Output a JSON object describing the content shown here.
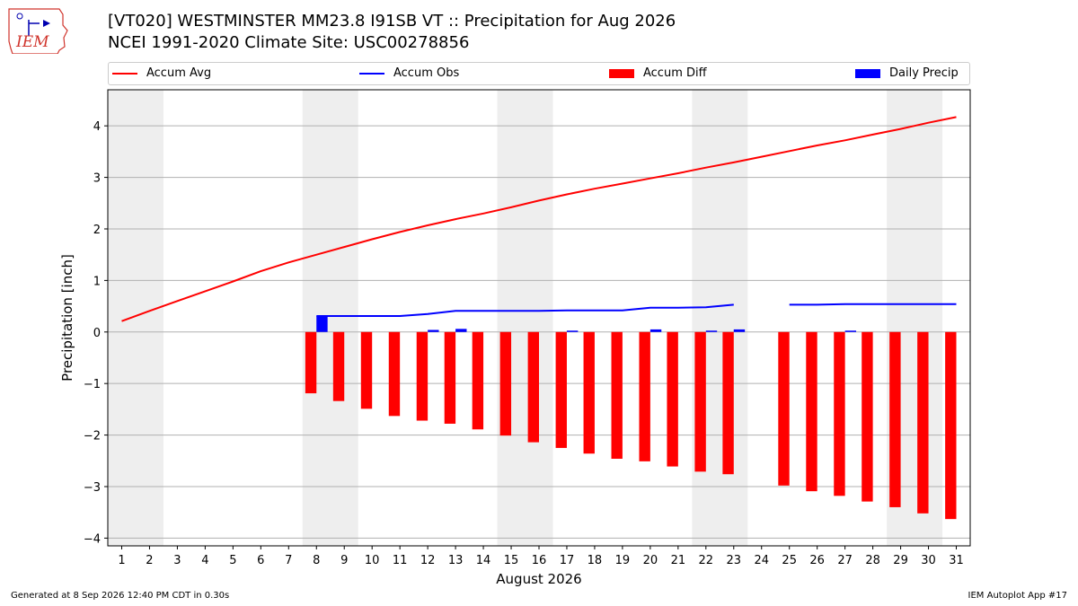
{
  "logo": {
    "text": "IEM",
    "icon": "iem-logo-icon"
  },
  "title_line1": "[VT020] WESTMINSTER MM23.8 I91SB  VT :: Precipitation for Aug 2026",
  "title_line2": "NCEI 1991-2020 Climate Site: USC00278856",
  "footer_left": "Generated at 8 Sep 2026 12:40 PM CDT in 0.30s",
  "footer_right": "IEM Autoplot App #17",
  "colors": {
    "avg": "#ff0000",
    "obs": "#0000ff",
    "diff": "#ff0000",
    "daily": "#0000ff",
    "weekend": "#eeeeee",
    "grid": "#b0b0b0"
  },
  "chart_data": {
    "type": "bar",
    "xlabel": "August 2026",
    "ylabel": "Precipitation [inch]",
    "xlim": [
      0.5,
      31.5
    ],
    "ylim": [
      -4.15,
      4.7
    ],
    "grid": true,
    "legend_position": "top",
    "x": [
      1,
      2,
      3,
      4,
      5,
      6,
      7,
      8,
      9,
      10,
      11,
      12,
      13,
      14,
      15,
      16,
      17,
      18,
      19,
      20,
      21,
      22,
      23,
      24,
      25,
      26,
      27,
      28,
      29,
      30,
      31
    ],
    "yticks": [
      -4,
      -3,
      -2,
      -1,
      0,
      1,
      2,
      3,
      4
    ],
    "ytick_labels": [
      "−4",
      "−3",
      "−2",
      "−1",
      "0",
      "1",
      "2",
      "3",
      "4"
    ],
    "weekend_spans": [
      [
        0.5,
        2.5
      ],
      [
        7.5,
        9.5
      ],
      [
        14.5,
        16.5
      ],
      [
        21.5,
        23.5
      ],
      [
        28.5,
        30.5
      ]
    ],
    "legend": [
      "Accum Avg",
      "Accum Obs",
      "Accum Diff",
      "Daily Precip"
    ],
    "series": [
      {
        "name": "Accum Avg",
        "kind": "line",
        "values": [
          0.21,
          0.41,
          0.6,
          0.79,
          0.98,
          1.18,
          1.35,
          1.5,
          1.65,
          1.8,
          1.94,
          2.07,
          2.19,
          2.3,
          2.42,
          2.55,
          2.67,
          2.78,
          2.88,
          2.98,
          3.08,
          3.19,
          3.29,
          3.4,
          3.51,
          3.62,
          3.72,
          3.83,
          3.94,
          4.06,
          4.17
        ]
      },
      {
        "name": "Accum Obs",
        "kind": "line",
        "values": [
          null,
          null,
          null,
          null,
          null,
          null,
          null,
          0.31,
          0.31,
          0.31,
          0.31,
          0.35,
          0.41,
          0.41,
          0.41,
          0.41,
          0.42,
          0.42,
          0.42,
          0.47,
          0.47,
          0.48,
          0.53,
          null,
          0.53,
          0.53,
          0.54,
          0.54,
          0.54,
          0.54,
          0.54
        ]
      },
      {
        "name": "Accum Diff",
        "kind": "bar",
        "values": [
          null,
          null,
          null,
          null,
          null,
          null,
          null,
          -1.19,
          -1.34,
          -1.49,
          -1.63,
          -1.72,
          -1.78,
          -1.89,
          -2.01,
          -2.14,
          -2.25,
          -2.36,
          -2.46,
          -2.51,
          -2.61,
          -2.71,
          -2.76,
          null,
          -2.98,
          -3.09,
          -3.18,
          -3.29,
          -3.4,
          -3.52,
          -3.63
        ]
      },
      {
        "name": "Daily Precip",
        "kind": "bar",
        "values": [
          null,
          null,
          null,
          null,
          null,
          null,
          null,
          0.31,
          0,
          0,
          0,
          0.04,
          0.06,
          0,
          0,
          0,
          0.01,
          0,
          0,
          0.05,
          0,
          0.01,
          0.05,
          null,
          0,
          0,
          0.01,
          0,
          0,
          0,
          0
        ]
      }
    ]
  }
}
